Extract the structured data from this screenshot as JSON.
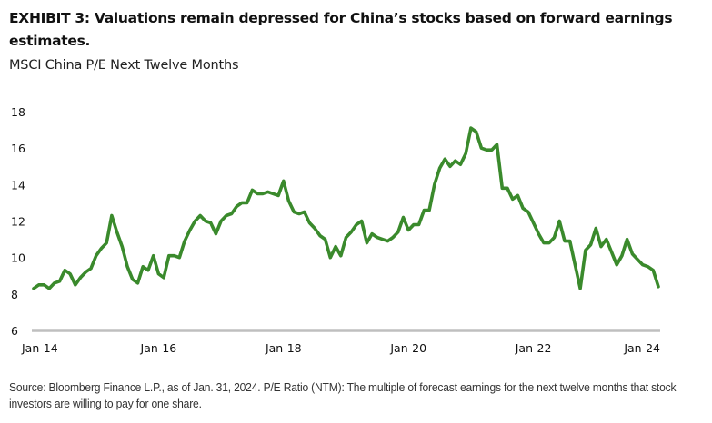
{
  "header": {
    "title": "EXHIBIT 3: Valuations remain depressed for China’s stocks based on forward earnings estimates.",
    "subtitle": "MSCI China P/E Next Twelve Months"
  },
  "footer": {
    "source": "Source: Bloomberg Finance L.P., as of Jan. 31, 2024. P/E Ratio (NTM): The multiple of forecast earnings for the next twelve months that stock investors are willing to pay for one share."
  },
  "colors": {
    "line": "#3a8a2c",
    "axis": "#bfbfbf",
    "text": "#111111"
  },
  "chart_data": {
    "type": "line",
    "title": "MSCI China P/E Next Twelve Months",
    "xlabel": "",
    "ylabel": "",
    "ylim": [
      6,
      18
    ],
    "yticks": [
      6,
      8,
      10,
      12,
      14,
      16,
      18
    ],
    "ytick_labels": [
      "6",
      "8",
      "10",
      "12",
      "14",
      "16",
      "18"
    ],
    "xticks": [
      0,
      24,
      48,
      72,
      96,
      120
    ],
    "xtick_labels": [
      "Jan-14",
      "Jan-16",
      "Jan-18",
      "Jan-20",
      "Jan-22",
      "Jan-24"
    ],
    "x_start": "Jan-14",
    "x_frequency": "monthly",
    "grid": false,
    "legend": "none",
    "series": [
      {
        "name": "MSCI China P/E NTM",
        "values": [
          8.3,
          8.5,
          8.5,
          8.3,
          8.6,
          8.7,
          9.3,
          9.1,
          8.5,
          8.9,
          9.2,
          9.4,
          10.1,
          10.5,
          10.8,
          12.3,
          11.4,
          10.6,
          9.5,
          8.8,
          8.6,
          9.5,
          9.3,
          10.1,
          9.1,
          8.9,
          10.1,
          10.1,
          10.0,
          10.9,
          11.5,
          12.0,
          12.3,
          12.0,
          11.9,
          11.3,
          12.0,
          12.3,
          12.4,
          12.8,
          13.0,
          13.0,
          13.7,
          13.5,
          13.5,
          13.6,
          13.5,
          13.4,
          14.2,
          13.1,
          12.5,
          12.4,
          12.5,
          11.9,
          11.6,
          11.2,
          11.0,
          10.0,
          10.6,
          10.1,
          11.1,
          11.4,
          11.8,
          12.0,
          10.8,
          11.3,
          11.1,
          11.0,
          10.9,
          11.1,
          11.4,
          12.2,
          11.5,
          11.8,
          11.8,
          12.6,
          12.6,
          14.0,
          14.9,
          15.4,
          15.0,
          15.3,
          15.1,
          15.7,
          17.1,
          16.9,
          16.0,
          15.9,
          15.9,
          16.2,
          13.8,
          13.8,
          13.2,
          13.4,
          12.7,
          12.5,
          11.9,
          11.3,
          10.8,
          10.8,
          11.1,
          12.0,
          10.9,
          10.9,
          9.6,
          8.3,
          10.4,
          10.7,
          11.6,
          10.6,
          11.0,
          10.3,
          9.6,
          10.1,
          11.0,
          10.2,
          9.9,
          9.6,
          9.5,
          9.3,
          8.4
        ]
      }
    ]
  }
}
